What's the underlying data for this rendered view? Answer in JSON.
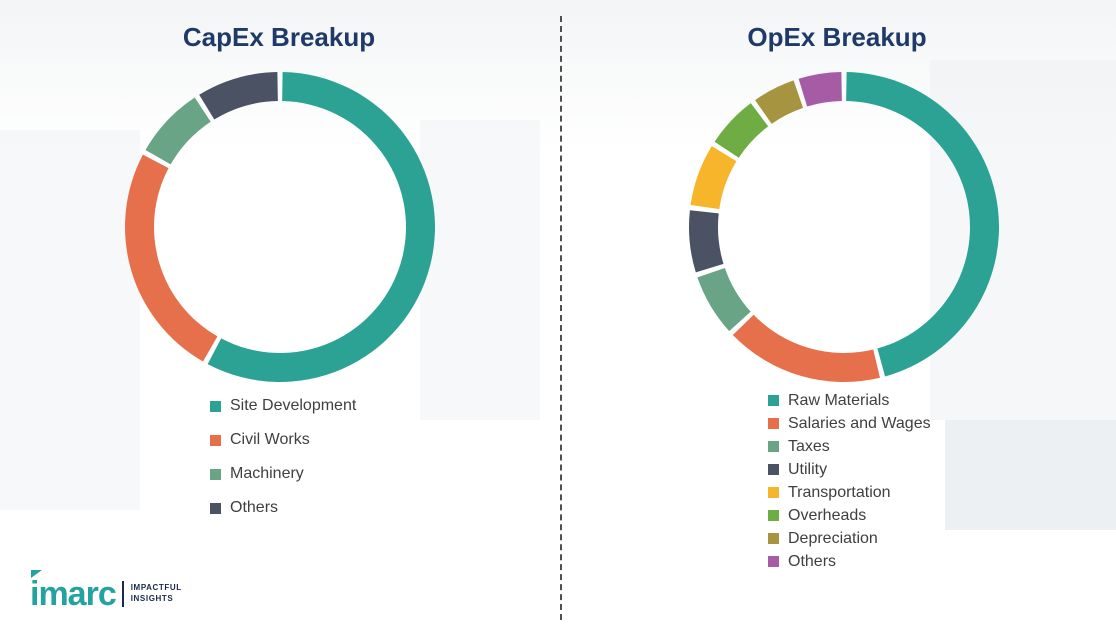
{
  "chart_data": [
    {
      "type": "pie",
      "subtype": "donut",
      "title": "CapEx Breakup",
      "legend_position": "below",
      "values_unit": "% (estimated from arc angles)",
      "segments": [
        {
          "label": "Site Development",
          "value": 58,
          "color": "#2BA294"
        },
        {
          "label": "Civil Works",
          "value": 25,
          "color": "#E7704C"
        },
        {
          "label": "Machinery",
          "value": 8,
          "color": "#6AA487"
        },
        {
          "label": "Others",
          "value": 9,
          "color": "#4A5263"
        }
      ]
    },
    {
      "type": "pie",
      "subtype": "donut",
      "title": "OpEx Breakup",
      "legend_position": "below",
      "values_unit": "% (estimated from arc angles)",
      "segments": [
        {
          "label": "Raw Materials",
          "value": 46,
          "color": "#2BA294"
        },
        {
          "label": "Salaries and Wages",
          "value": 17,
          "color": "#E7704C"
        },
        {
          "label": "Taxes",
          "value": 7,
          "color": "#6AA487"
        },
        {
          "label": "Utility",
          "value": 7,
          "color": "#4A5263"
        },
        {
          "label": "Transportation",
          "value": 7,
          "color": "#F7B52C"
        },
        {
          "label": "Overheads",
          "value": 6,
          "color": "#6FAD44"
        },
        {
          "label": "Depreciation",
          "value": 5,
          "color": "#A79440"
        },
        {
          "label": "Others",
          "value": 5,
          "color": "#A55CA5"
        }
      ]
    }
  ],
  "logo": {
    "brand": "imarc",
    "tagline": [
      "IMPACTFUL",
      "INSIGHTS"
    ]
  },
  "palette": {
    "title_color": "#1F3A68",
    "legend_text_color": "#3F3F3F",
    "brand_teal": "#23A2A0",
    "divider_color": "#4F4F4F"
  }
}
